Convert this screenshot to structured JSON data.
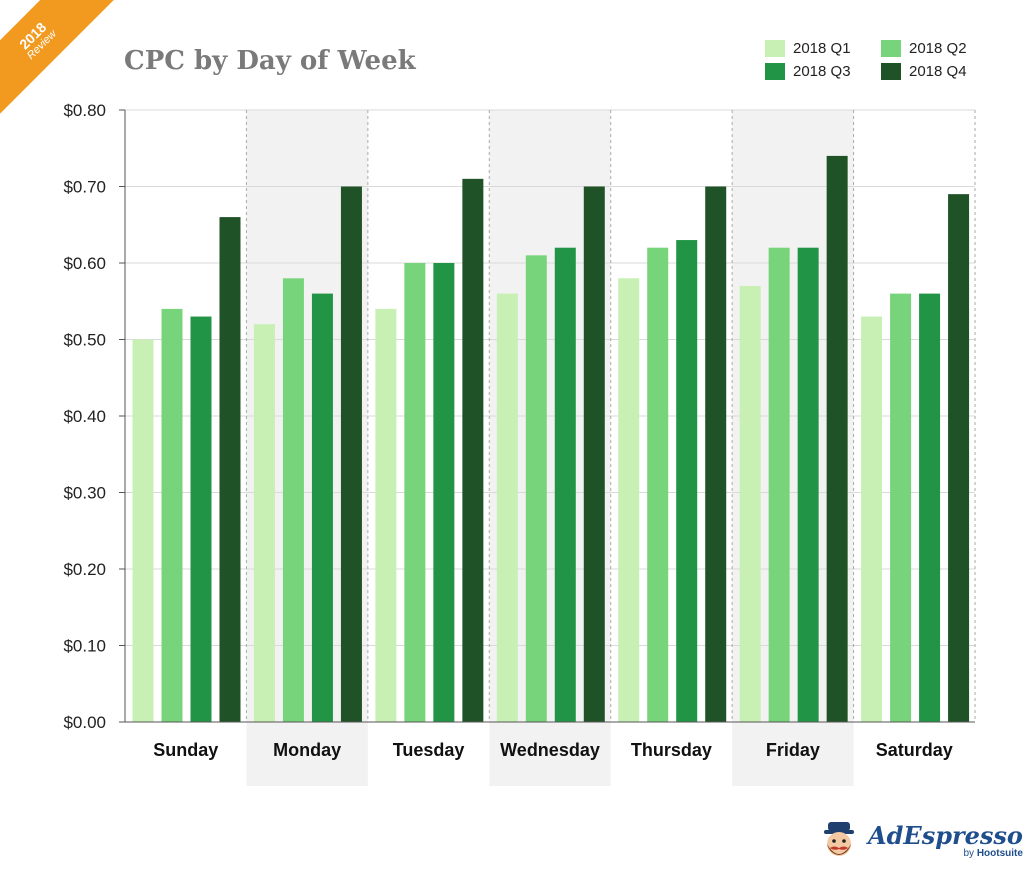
{
  "ribbon": {
    "year": "2018",
    "label": "Review"
  },
  "title": "CPC by Day of Week",
  "brand": {
    "name": "AdEspresso",
    "by": "by",
    "parent": "Hootsuite"
  },
  "colors": {
    "q1": "#c8f0b4",
    "q2": "#78d47a",
    "q3": "#229445",
    "q4": "#1f5226",
    "ribbon": "#f29a1f",
    "band": "#f2f2f2",
    "title": "#7a7a7a",
    "brand": "#1f4e8c"
  },
  "chart_data": {
    "type": "bar",
    "title": "CPC by Day of Week",
    "xlabel": "",
    "ylabel": "",
    "categories": [
      "Sunday",
      "Monday",
      "Tuesday",
      "Wednesday",
      "Thursday",
      "Friday",
      "Saturday"
    ],
    "series": [
      {
        "name": "2018 Q1",
        "color": "#c8f0b4",
        "values": [
          0.5,
          0.52,
          0.54,
          0.56,
          0.58,
          0.57,
          0.53
        ]
      },
      {
        "name": "2018 Q2",
        "color": "#78d47a",
        "values": [
          0.54,
          0.58,
          0.6,
          0.61,
          0.62,
          0.62,
          0.56
        ]
      },
      {
        "name": "2018 Q3",
        "color": "#229445",
        "values": [
          0.53,
          0.56,
          0.6,
          0.62,
          0.63,
          0.62,
          0.56
        ]
      },
      {
        "name": "2018 Q4",
        "color": "#1f5226",
        "values": [
          0.66,
          0.7,
          0.71,
          0.7,
          0.7,
          0.74,
          0.69
        ]
      }
    ],
    "ylim": [
      0,
      0.8
    ],
    "yticks": [
      0,
      0.1,
      0.2,
      0.3,
      0.4,
      0.5,
      0.6,
      0.7,
      0.8
    ],
    "ytick_labels": [
      "$0.00",
      "$0.10",
      "$0.20",
      "$0.30",
      "$0.40",
      "$0.50",
      "$0.60",
      "$0.70",
      "$0.80"
    ],
    "grid": true,
    "shaded_categories": [
      "Monday",
      "Wednesday",
      "Friday"
    ],
    "legend": {
      "position": "top-right"
    }
  }
}
